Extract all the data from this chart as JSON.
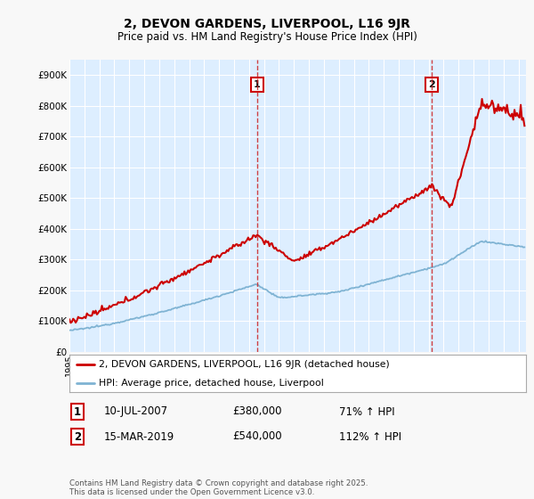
{
  "title": "2, DEVON GARDENS, LIVERPOOL, L16 9JR",
  "subtitle": "Price paid vs. HM Land Registry's House Price Index (HPI)",
  "legend_line1": "2, DEVON GARDENS, LIVERPOOL, L16 9JR (detached house)",
  "legend_line2": "HPI: Average price, detached house, Liverpool",
  "sale1_label": "1",
  "sale1_date": "10-JUL-2007",
  "sale1_price": "£380,000",
  "sale1_hpi": "71% ↑ HPI",
  "sale1_year": 2007.53,
  "sale1_value": 380000,
  "sale2_label": "2",
  "sale2_date": "15-MAR-2019",
  "sale2_price": "£540,000",
  "sale2_hpi": "112% ↑ HPI",
  "sale2_year": 2019.2,
  "sale2_value": 540000,
  "ylim": [
    0,
    950000
  ],
  "yticks": [
    0,
    100000,
    200000,
    300000,
    400000,
    500000,
    600000,
    700000,
    800000,
    900000
  ],
  "ytick_labels": [
    "£0",
    "£100K",
    "£200K",
    "£300K",
    "£400K",
    "£500K",
    "£600K",
    "£700K",
    "£800K",
    "£900K"
  ],
  "red_color": "#cc0000",
  "blue_color": "#7fb3d3",
  "plot_bg_color": "#ddeeff",
  "fig_bg_color": "#f8f8f8",
  "grid_color": "#ffffff",
  "footer": "Contains HM Land Registry data © Crown copyright and database right 2025.\nThis data is licensed under the Open Government Licence v3.0."
}
